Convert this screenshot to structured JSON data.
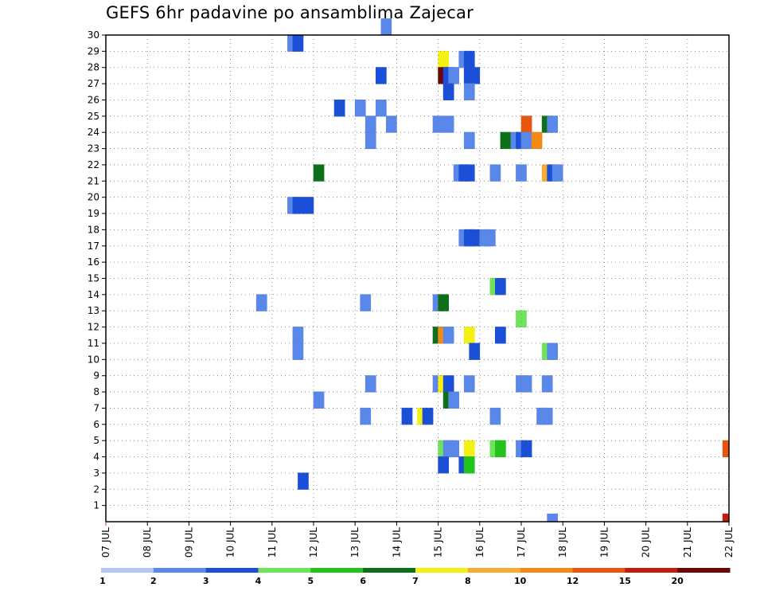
{
  "chart_data": {
    "type": "heatmap",
    "title": "GEFS 6hr padavine po ansamblima Zajecar",
    "xlabel": "",
    "ylabel": "",
    "x_ticks": [
      "07 JUL",
      "08 JUL",
      "09 JUL",
      "10 JUL",
      "11 JUL",
      "12 JUL",
      "13 JUL",
      "14 JUL",
      "15 JUL",
      "16 JUL",
      "17 JUL",
      "18 JUL",
      "19 JUL",
      "20 JUL",
      "21 JUL",
      "22 JUL"
    ],
    "y_ticks": [
      "1",
      "2",
      "3",
      "4",
      "5",
      "6",
      "7",
      "8",
      "9",
      "10",
      "11",
      "12",
      "13",
      "14",
      "15",
      "16",
      "17",
      "18",
      "19",
      "20",
      "21",
      "22",
      "23",
      "24",
      "25",
      "26",
      "27",
      "28",
      "29",
      "30"
    ],
    "xlim": [
      0,
      60
    ],
    "ylim": [
      0,
      30
    ],
    "grid": true,
    "colorbar": {
      "levels": [
        "1",
        "2",
        "3",
        "4",
        "5",
        "6",
        "7",
        "8",
        "10",
        "12",
        "15",
        "20"
      ],
      "colors": [
        "#b4c8f4",
        "#5a87ea",
        "#1c4fd8",
        "#6ee45a",
        "#22c31a",
        "#0d7018",
        "#f4f012",
        "#f4ad30",
        "#f48a16",
        "#e8560e",
        "#c61a0c",
        "#6a0808"
      ]
    },
    "x_unit_note": "6-hour steps from 07 JUL",
    "cells": [
      [
        18.0,
        29,
        1
      ],
      [
        18.5,
        29,
        2
      ],
      [
        27.0,
        30,
        1
      ],
      [
        32.5,
        28,
        6
      ],
      [
        34.5,
        28,
        1
      ],
      [
        35.0,
        28,
        2
      ],
      [
        26.5,
        27,
        2
      ],
      [
        32.5,
        27,
        11
      ],
      [
        33.0,
        27,
        2
      ],
      [
        33.5,
        27,
        1
      ],
      [
        35.0,
        27,
        2
      ],
      [
        35.5,
        27,
        2
      ],
      [
        33.0,
        26,
        2
      ],
      [
        35.0,
        26,
        1
      ],
      [
        22.5,
        25,
        2
      ],
      [
        24.5,
        25,
        1
      ],
      [
        26.5,
        25,
        1
      ],
      [
        27.5,
        24,
        1
      ],
      [
        32.0,
        24,
        1
      ],
      [
        33.0,
        24,
        1
      ],
      [
        25.5,
        24,
        1
      ],
      [
        25.5,
        23,
        1
      ],
      [
        40.5,
        24,
        9
      ],
      [
        42.5,
        24,
        5
      ],
      [
        43.0,
        24,
        1
      ],
      [
        35.0,
        23,
        1
      ],
      [
        38.5,
        23,
        5
      ],
      [
        39.5,
        23,
        1
      ],
      [
        40.0,
        23,
        2
      ],
      [
        40.5,
        23,
        1
      ],
      [
        41.5,
        23,
        8
      ],
      [
        20.5,
        21,
        5
      ],
      [
        34.0,
        21,
        1
      ],
      [
        34.5,
        21,
        2
      ],
      [
        35.0,
        21,
        2
      ],
      [
        37.5,
        21,
        1
      ],
      [
        40.0,
        21,
        1
      ],
      [
        42.5,
        21,
        7
      ],
      [
        43.0,
        21,
        2
      ],
      [
        43.5,
        21,
        1
      ],
      [
        18.0,
        19,
        1
      ],
      [
        18.5,
        19,
        2
      ],
      [
        19.5,
        19,
        2
      ],
      [
        34.5,
        17,
        1
      ],
      [
        35.0,
        17,
        2
      ],
      [
        35.5,
        17,
        2
      ],
      [
        36.5,
        17,
        1
      ],
      [
        37.0,
        17,
        1
      ],
      [
        37.5,
        14,
        3
      ],
      [
        38.0,
        14,
        2
      ],
      [
        15.0,
        13,
        1
      ],
      [
        25.0,
        13,
        1
      ],
      [
        32.0,
        13,
        1
      ],
      [
        32.5,
        13,
        5
      ],
      [
        40.0,
        12,
        3
      ],
      [
        18.5,
        11,
        1
      ],
      [
        32.0,
        11,
        5
      ],
      [
        32.5,
        11,
        8
      ],
      [
        33.0,
        11,
        1
      ],
      [
        35.0,
        11,
        6
      ],
      [
        38.0,
        11,
        2
      ],
      [
        18.5,
        10,
        1
      ],
      [
        35.5,
        10,
        2
      ],
      [
        42.5,
        10,
        3
      ],
      [
        43.0,
        10,
        1
      ],
      [
        25.5,
        8,
        1
      ],
      [
        32.0,
        8,
        1
      ],
      [
        32.5,
        8,
        6
      ],
      [
        33.0,
        8,
        2
      ],
      [
        35.0,
        8,
        1
      ],
      [
        40.0,
        8,
        1
      ],
      [
        40.5,
        8,
        1
      ],
      [
        42.5,
        8,
        1
      ],
      [
        20.5,
        7,
        1
      ],
      [
        33.0,
        7,
        5
      ],
      [
        33.5,
        7,
        1
      ],
      [
        25.0,
        6,
        1
      ],
      [
        29.0,
        6,
        2
      ],
      [
        30.5,
        6,
        6
      ],
      [
        31.0,
        6,
        2
      ],
      [
        37.5,
        6,
        1
      ],
      [
        42.0,
        6,
        1
      ],
      [
        42.5,
        6,
        1
      ],
      [
        32.5,
        4,
        3
      ],
      [
        33.0,
        4,
        1
      ],
      [
        33.5,
        4,
        1
      ],
      [
        35.0,
        4,
        6
      ],
      [
        37.5,
        4,
        3
      ],
      [
        38.0,
        4,
        4
      ],
      [
        40.0,
        4,
        1
      ],
      [
        40.5,
        4,
        2
      ],
      [
        59.9,
        4,
        9
      ],
      [
        32.5,
        3,
        2
      ],
      [
        34.5,
        3,
        2
      ],
      [
        35.0,
        3,
        4
      ],
      [
        19.0,
        2,
        2
      ],
      [
        43.0,
        0,
        1
      ],
      [
        59.9,
        0,
        10
      ]
    ]
  }
}
